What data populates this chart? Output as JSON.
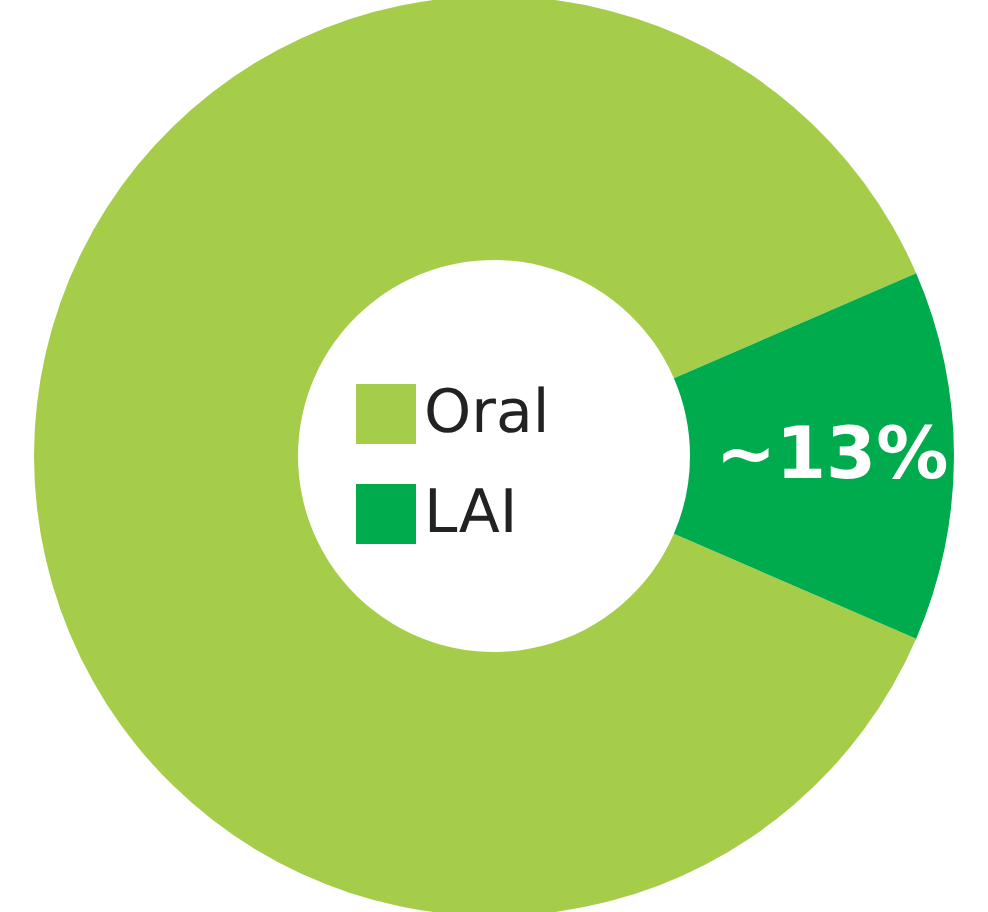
{
  "chart_data": {
    "type": "donut",
    "categories": [
      "Oral",
      "LAI"
    ],
    "values": [
      87,
      13
    ],
    "colors": [
      "#a5cd4a",
      "#00ab4e"
    ],
    "value_labels": [
      null,
      "~13%"
    ],
    "legend": "center"
  }
}
